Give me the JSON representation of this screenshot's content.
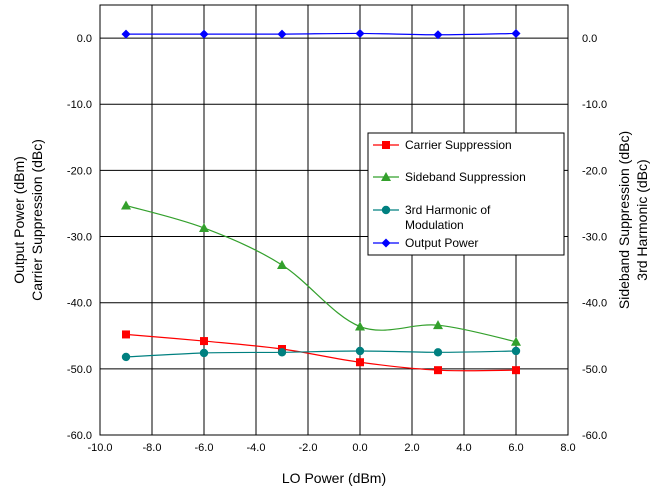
{
  "chart_data": {
    "type": "line",
    "xlabel": "LO Power (dBm)",
    "ylabel_left_line1": "Output Power (dBm)",
    "ylabel_left_line2": "Carrier Suppression (dBc)",
    "ylabel_right_line1": "Sideband Suppression (dBc)",
    "ylabel_right_line2": "3rd Harmonic (dBc)",
    "xlim": [
      -10.0,
      8.0
    ],
    "ylim": [
      -60.0,
      5.0
    ],
    "x_ticks": [
      "-10.0",
      "-8.0",
      "-6.0",
      "-4.0",
      "-2.0",
      "0.0",
      "2.0",
      "4.0",
      "6.0",
      "8.0"
    ],
    "y_ticks": [
      "0.0",
      "-10.0",
      "-20.0",
      "-30.0",
      "-40.0",
      "-50.0",
      "-60.0"
    ],
    "grid": true,
    "legend_position": "right",
    "series": [
      {
        "name": "Carrier Suppression",
        "color": "#ff0000",
        "marker": "square",
        "x": [
          -9.0,
          -6.0,
          -3.0,
          0.0,
          3.0,
          6.0
        ],
        "y": [
          -44.8,
          -45.8,
          -47.0,
          -49.0,
          -50.2,
          -50.2
        ]
      },
      {
        "name": "Sideband Suppression",
        "color": "#33a02c",
        "marker": "triangle",
        "x": [
          -9.0,
          -6.0,
          -3.0,
          0.0,
          3.0,
          6.0
        ],
        "y": [
          -25.3,
          -28.7,
          -34.3,
          -43.6,
          -43.4,
          -45.9
        ]
      },
      {
        "name": "3rd Harmonic of Modulation",
        "color": "#008080",
        "marker": "circle",
        "x": [
          -9.0,
          -6.0,
          -3.0,
          0.0,
          3.0,
          6.0
        ],
        "y": [
          -48.2,
          -47.6,
          -47.5,
          -47.3,
          -47.5,
          -47.3
        ]
      },
      {
        "name": "Output Power",
        "color": "#0000ff",
        "marker": "diamond",
        "x": [
          -9.0,
          -6.0,
          -3.0,
          0.0,
          3.0,
          6.0
        ],
        "y": [
          0.6,
          0.6,
          0.6,
          0.7,
          0.5,
          0.7
        ]
      }
    ]
  }
}
